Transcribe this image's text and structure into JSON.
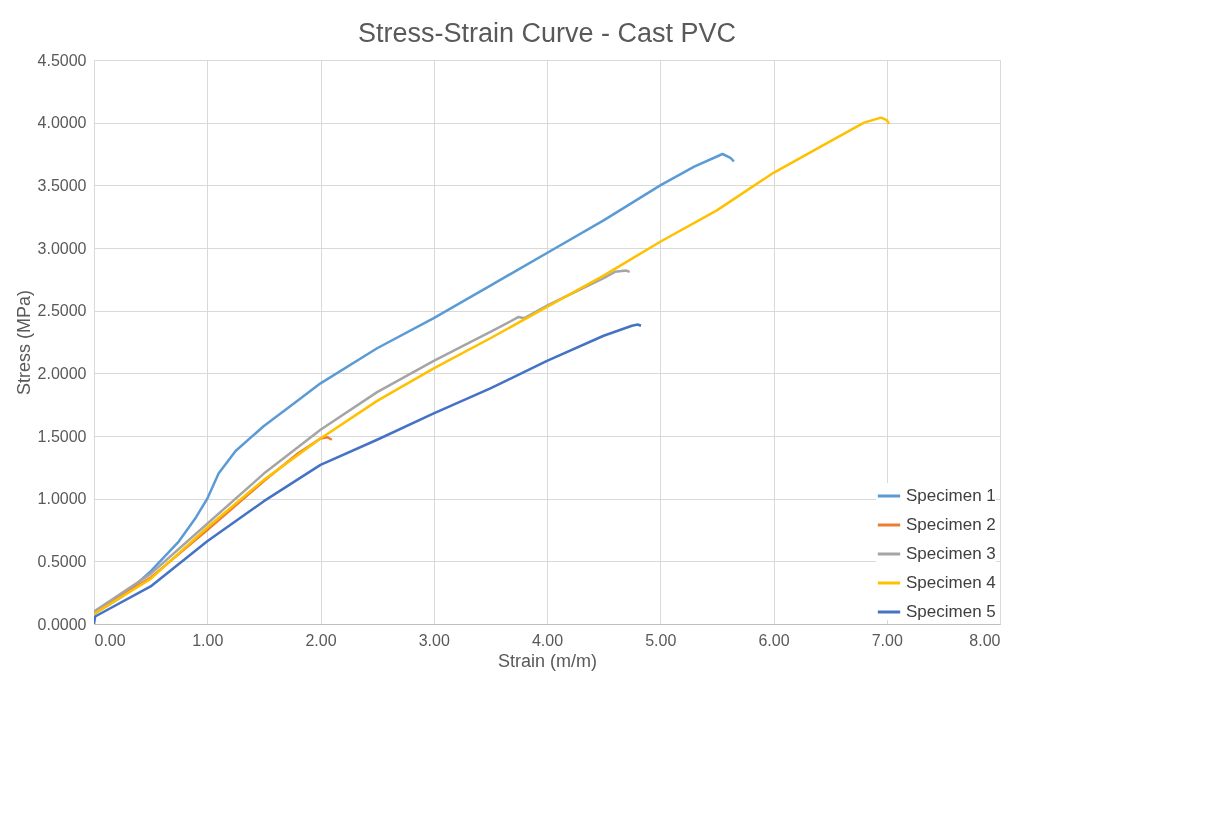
{
  "chart_data": {
    "type": "line",
    "title": "Stress-Strain Curve - Cast PVC",
    "xlabel": "Strain (m/m)",
    "ylabel": "Stress (MPa)",
    "xlim": [
      0,
      8
    ],
    "ylim": [
      0,
      4.5
    ],
    "xticks": [
      {
        "value": 0,
        "label": "0.00"
      },
      {
        "value": 1,
        "label": "1.00"
      },
      {
        "value": 2,
        "label": "2.00"
      },
      {
        "value": 3,
        "label": "3.00"
      },
      {
        "value": 4,
        "label": "4.00"
      },
      {
        "value": 5,
        "label": "5.00"
      },
      {
        "value": 6,
        "label": "6.00"
      },
      {
        "value": 7,
        "label": "7.00"
      },
      {
        "value": 8,
        "label": "8.00"
      }
    ],
    "yticks": [
      {
        "value": 0,
        "label": "0.0000"
      },
      {
        "value": 0.5,
        "label": "0.5000"
      },
      {
        "value": 1,
        "label": "1.0000"
      },
      {
        "value": 1.5,
        "label": "1.5000"
      },
      {
        "value": 2,
        "label": "2.0000"
      },
      {
        "value": 2.5,
        "label": "2.5000"
      },
      {
        "value": 3,
        "label": "3.0000"
      },
      {
        "value": 3.5,
        "label": "3.5000"
      },
      {
        "value": 4,
        "label": "4.0000"
      },
      {
        "value": 4.5,
        "label": "4.5000"
      }
    ],
    "grid": true,
    "legend": "bottom right",
    "marker": "none",
    "line_style": "solid",
    "series": [
      {
        "name": "Specimen 1",
        "color": "#5b9bd5",
        "x": [
          0,
          0.25,
          0.5,
          0.75,
          0.9,
          1.0,
          1.1,
          1.25,
          1.5,
          1.75,
          2.0,
          2.5,
          3.0,
          3.5,
          4.0,
          4.5,
          5.0,
          5.3,
          5.55,
          5.62,
          5.65
        ],
        "values": [
          0.08,
          0.22,
          0.42,
          0.66,
          0.85,
          1.0,
          1.2,
          1.38,
          1.58,
          1.75,
          1.92,
          2.2,
          2.44,
          2.7,
          2.96,
          3.22,
          3.5,
          3.65,
          3.75,
          3.72,
          3.69
        ]
      },
      {
        "name": "Specimen 2",
        "color": "#ed7d31",
        "x": [
          0,
          0.5,
          1.0,
          1.5,
          1.8,
          2.0,
          2.06,
          2.1
        ],
        "values": [
          0.09,
          0.37,
          0.75,
          1.14,
          1.36,
          1.48,
          1.49,
          1.47
        ]
      },
      {
        "name": "Specimen 3",
        "color": "#a5a5a5",
        "x": [
          0,
          0.5,
          1.0,
          1.5,
          2.0,
          2.5,
          3.0,
          3.5,
          3.75,
          3.8,
          4.0,
          4.5,
          4.6,
          4.7,
          4.73
        ],
        "values": [
          0.1,
          0.4,
          0.8,
          1.2,
          1.55,
          1.85,
          2.1,
          2.33,
          2.45,
          2.44,
          2.54,
          2.76,
          2.81,
          2.82,
          2.81
        ]
      },
      {
        "name": "Specimen 4",
        "color": "#ffc000",
        "x": [
          0,
          0.5,
          1.0,
          1.5,
          2.0,
          2.5,
          3.0,
          3.5,
          4.0,
          4.5,
          5.0,
          5.5,
          6.0,
          6.5,
          6.8,
          6.95,
          7.0,
          7.02
        ],
        "values": [
          0.08,
          0.36,
          0.77,
          1.15,
          1.48,
          1.78,
          2.04,
          2.28,
          2.53,
          2.78,
          3.05,
          3.3,
          3.6,
          3.85,
          4.0,
          4.04,
          4.02,
          3.99
        ]
      },
      {
        "name": "Specimen 5",
        "color": "#4472c4",
        "x": [
          0,
          0.01,
          0.5,
          1.0,
          1.5,
          2.0,
          2.5,
          3.0,
          3.5,
          4.0,
          4.5,
          4.75,
          4.8,
          4.83
        ],
        "values": [
          0.0,
          0.06,
          0.3,
          0.66,
          0.98,
          1.27,
          1.47,
          1.68,
          1.88,
          2.1,
          2.3,
          2.38,
          2.39,
          2.38
        ]
      }
    ]
  }
}
